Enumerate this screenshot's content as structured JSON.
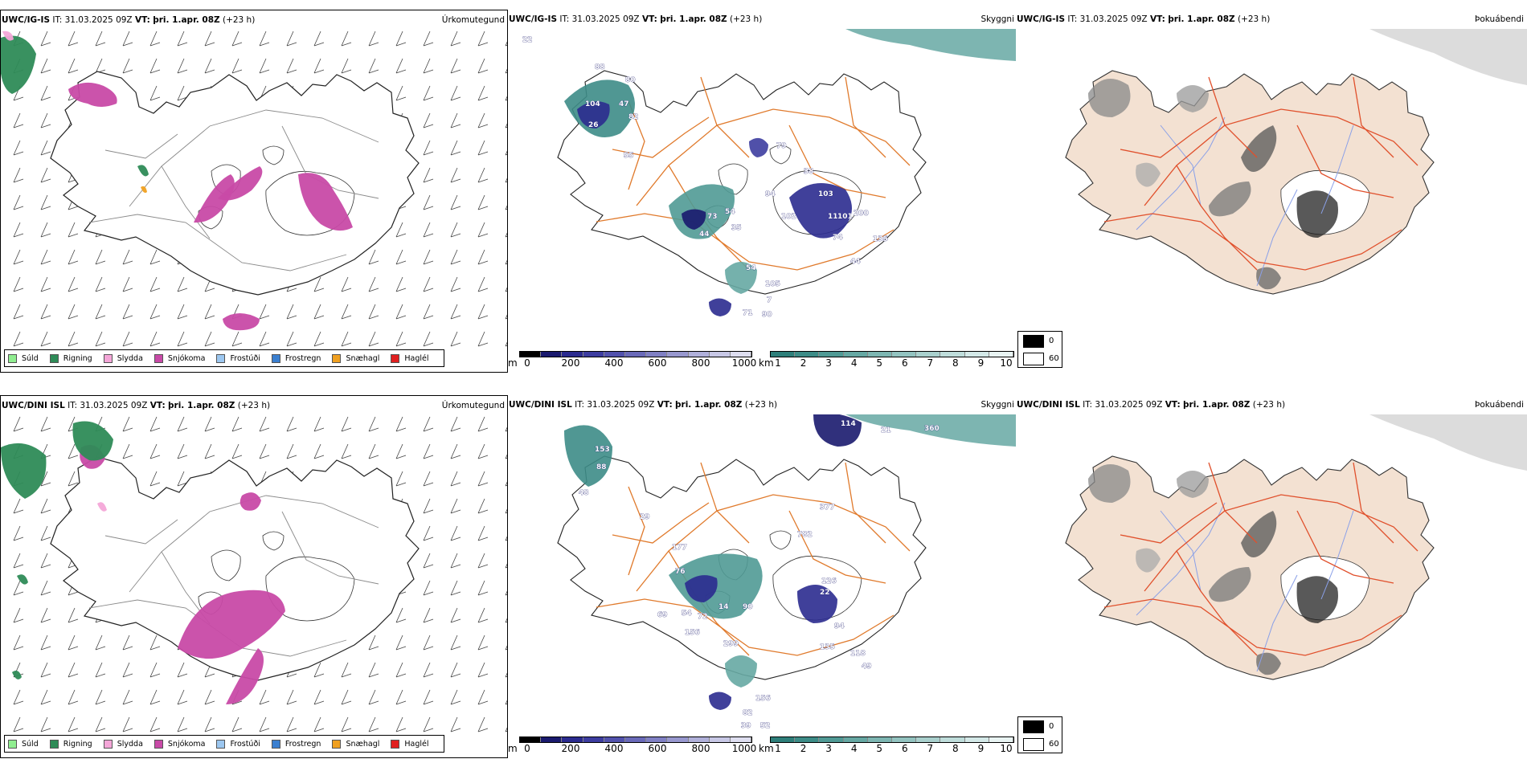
{
  "rows": [
    {
      "model": "UWC/IG-IS",
      "it_label": "IT:",
      "it_value": "31.03.2025 09Z",
      "vt_label": "VT:",
      "vt_value": "þri. 1.apr. 08Z",
      "lead": "(+23 h)",
      "precip_title": "Úrkomutegund",
      "vis_title": "Skyggni",
      "fog_title": "Þokuábendi",
      "vis_labels": [
        "22",
        "88",
        "80",
        "104",
        "26",
        "82",
        "55",
        "54",
        "73",
        "44",
        "35",
        "94",
        "102",
        "103",
        "101",
        "11",
        "200",
        "74",
        "135",
        "44",
        "79",
        "38",
        "54",
        "105",
        "7",
        "71",
        "90",
        "47"
      ]
    },
    {
      "model": "UWC/DINI ISL",
      "it_label": "IT:",
      "it_value": "31.03.2025 09Z",
      "vt_label": "VT:",
      "vt_value": "þri. 1.apr. 08Z",
      "lead": "(+23 h)",
      "precip_title": "Úrkomutegund",
      "vis_title": "Skyggni",
      "fog_title": "Þokuábendi",
      "vis_labels": [
        "114",
        "21",
        "360",
        "153",
        "88",
        "48",
        "377",
        "29",
        "782",
        "177",
        "76",
        "126",
        "54",
        "72",
        "14",
        "90",
        "69",
        "156",
        "299",
        "94",
        "135",
        "118",
        "49",
        "156",
        "82",
        "39",
        "52",
        "22"
      ]
    }
  ],
  "precip_legend": [
    {
      "label": "Súld",
      "color": "#90ee90"
    },
    {
      "label": "Rigning",
      "color": "#2e8b57"
    },
    {
      "label": "Slydda",
      "color": "#f4a6d8"
    },
    {
      "label": "Snjókoma",
      "color": "#c84aa7"
    },
    {
      "label": "Frostúði",
      "color": "#9cc7f0"
    },
    {
      "label": "Frostregn",
      "color": "#3a7fd0"
    },
    {
      "label": "Snæhagl",
      "color": "#f0a020"
    },
    {
      "label": "Haglél",
      "color": "#e02020"
    }
  ],
  "ceiling_bar": {
    "unit": "m",
    "ticks": [
      "0",
      "200",
      "400",
      "600",
      "800",
      "1000"
    ],
    "colors": [
      "#000000",
      "#1a1a6e",
      "#2b2b8f",
      "#3d3da0",
      "#5252ad",
      "#6a6ab9",
      "#8080c4",
      "#9898cf",
      "#b0b0da",
      "#c8c8e6",
      "#dedef0"
    ]
  },
  "vis_bar": {
    "unit": "km",
    "ticks": [
      "1",
      "2",
      "3",
      "4",
      "5",
      "6",
      "7",
      "8",
      "9",
      "10"
    ],
    "colors": [
      "#2e7f7a",
      "#3d8c87",
      "#509a95",
      "#66a8a3",
      "#7db6b2",
      "#93c3c0",
      "#a9d0cd",
      "#bfdddb",
      "#d4e9e8",
      "#e9f4f3"
    ]
  },
  "fog_legend": [
    {
      "label": "0",
      "color": "#000000"
    },
    {
      "label": "60",
      "color": "#ffffff"
    }
  ],
  "colors": {
    "land_tan": "#f3e1d2",
    "road_orange": "#e07a2c",
    "road_red": "#e0502c",
    "river_blue": "#8aa0e8",
    "grey_roads": "#8a8a8a"
  }
}
